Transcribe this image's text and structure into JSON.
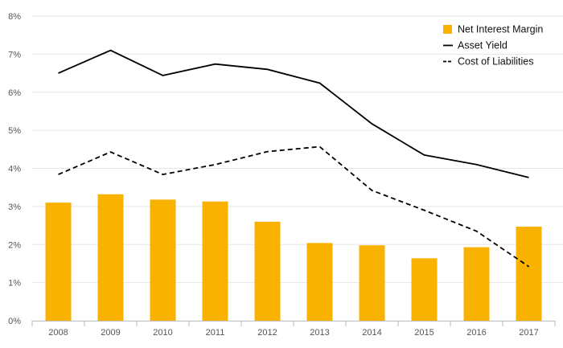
{
  "chart_data": {
    "type": "bar",
    "categories": [
      "2008",
      "2009",
      "2010",
      "2011",
      "2012",
      "2013",
      "2014",
      "2015",
      "2016",
      "2017"
    ],
    "series": [
      {
        "name": "Net Interest Margin",
        "kind": "bar",
        "color": "#F9B200",
        "values": [
          3.1,
          3.32,
          3.18,
          3.13,
          2.6,
          2.04,
          1.98,
          1.64,
          1.93,
          2.47
        ]
      },
      {
        "name": "Asset Yield",
        "kind": "line",
        "style": "solid",
        "color": "#000000",
        "values": [
          6.5,
          7.1,
          6.44,
          6.74,
          6.6,
          6.24,
          5.17,
          4.35,
          4.1,
          3.76
        ]
      },
      {
        "name": "Cost of Liabilities",
        "kind": "line",
        "style": "dashed",
        "color": "#000000",
        "values": [
          3.84,
          4.43,
          3.84,
          4.1,
          4.44,
          4.57,
          3.42,
          2.9,
          2.35,
          1.42
        ]
      }
    ],
    "ylim": [
      0,
      8
    ],
    "yticks": [
      "0%",
      "1%",
      "2%",
      "3%",
      "4%",
      "5%",
      "6%",
      "7%",
      "8%"
    ],
    "grid": true,
    "legend_position": "top-right"
  }
}
